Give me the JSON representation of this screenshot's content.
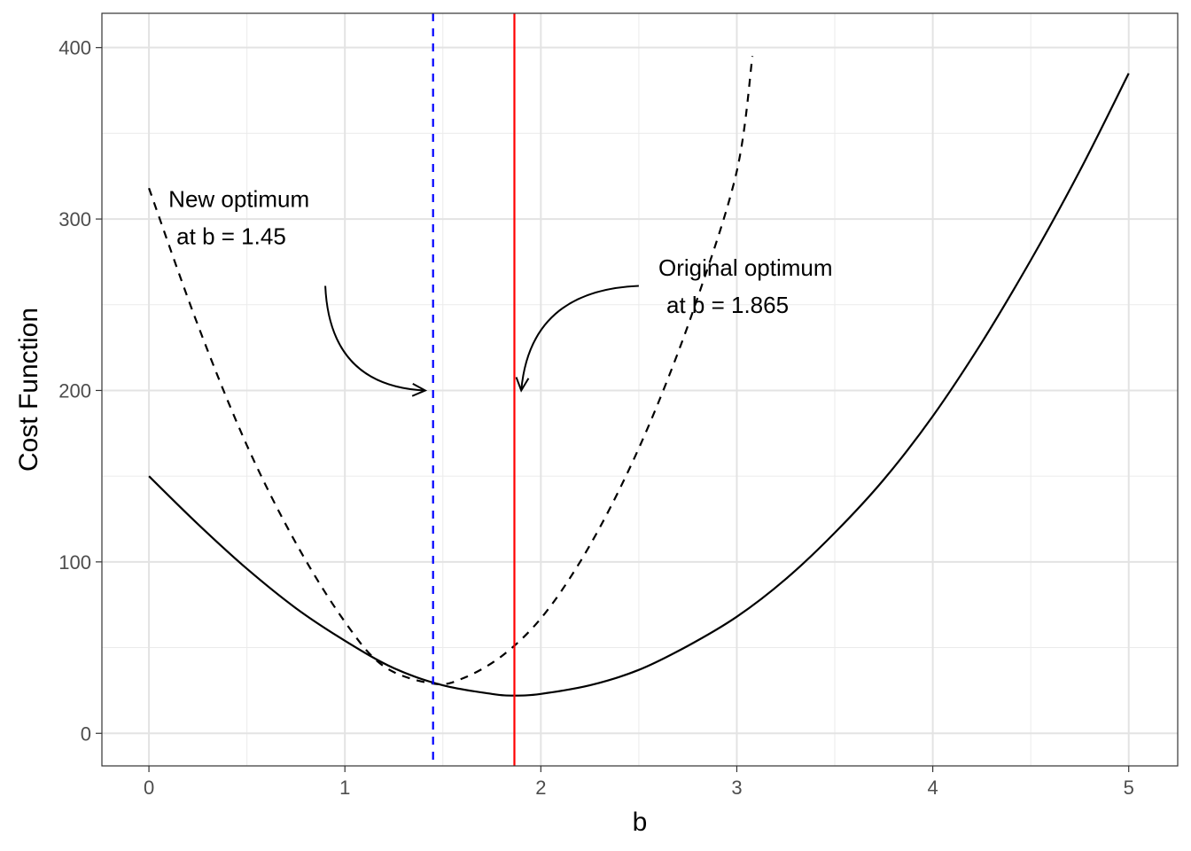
{
  "chart_data": {
    "type": "line",
    "xlabel": "b",
    "ylabel": "Cost Function",
    "xlim": [
      -0.24,
      5.25
    ],
    "ylim": [
      -19,
      420
    ],
    "x_ticks": [
      0,
      1,
      2,
      3,
      4,
      5
    ],
    "x_tick_labels": [
      "0",
      "1",
      "2",
      "3",
      "4",
      "5"
    ],
    "y_ticks": [
      0,
      100,
      200,
      300,
      400
    ],
    "y_tick_labels": [
      "0",
      "100",
      "200",
      "300",
      "400"
    ],
    "x_minor_ticks": [
      0.5,
      1.5,
      2.5,
      3.5,
      4.5
    ],
    "y_minor_ticks": [
      50,
      150,
      250,
      350
    ],
    "grid": true,
    "series": [
      {
        "style": "solid",
        "color": "#000000",
        "x": [
          0.0,
          0.25,
          0.5,
          0.75,
          1.0,
          1.25,
          1.5,
          1.75,
          1.865,
          2.0,
          2.25,
          2.5,
          2.75,
          3.0,
          3.25,
          3.5,
          3.75,
          4.0,
          4.25,
          4.5,
          4.75,
          5.0
        ],
        "y": [
          150,
          122,
          96,
          73,
          54,
          38,
          28,
          23,
          22,
          23,
          28,
          37,
          51,
          68,
          90,
          117,
          148,
          185,
          228,
          276,
          328,
          385
        ]
      },
      {
        "style": "dashed",
        "color": "#000000",
        "x": [
          0.0,
          0.25,
          0.5,
          0.75,
          1.0,
          1.2,
          1.45,
          1.6,
          1.8,
          2.0,
          2.2,
          2.4,
          2.6,
          2.8,
          3.0,
          3.08
        ],
        "y": [
          318,
          238,
          168,
          111,
          65,
          39,
          29,
          32,
          45,
          67,
          100,
          142,
          193,
          254,
          328,
          395
        ]
      }
    ],
    "vlines": [
      {
        "x": 1.45,
        "color": "#0000ff",
        "style": "dashed"
      },
      {
        "x": 1.865,
        "color": "#ff0000",
        "style": "solid"
      }
    ],
    "annotations": [
      {
        "lines": [
          "New optimum",
          "at b = 1.45"
        ],
        "x": 0.1,
        "y": 307,
        "arrow": {
          "from": [
            0.9,
            261
          ],
          "to": [
            1.41,
            200
          ]
        }
      },
      {
        "lines": [
          "Original optimum",
          "at b = 1.865"
        ],
        "x": 2.6,
        "y": 267,
        "arrow": {
          "from": [
            2.5,
            261
          ],
          "to": [
            1.9,
            200
          ]
        }
      }
    ]
  }
}
